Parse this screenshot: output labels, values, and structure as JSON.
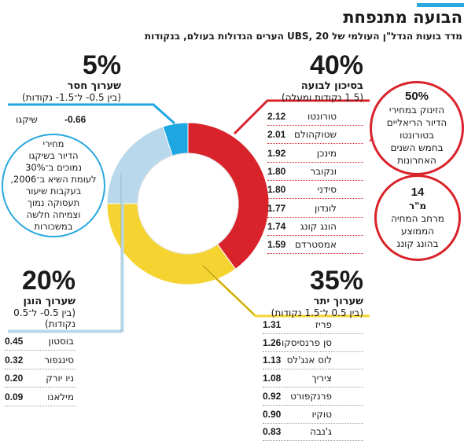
{
  "header": {
    "title": "הבועה מתנפחת",
    "subtitle": "מדד בועות הנדל\"ן העולמי של UBS, 20 הערים הגדולות בעולם, בנקודות"
  },
  "categories": {
    "risk": {
      "pct": "40%",
      "name": "בסיכון לבועה",
      "range": "(1.5 נקודות ומעלה)",
      "color": "#d9232a"
    },
    "over": {
      "pct": "35%",
      "name": "שערוך יתר",
      "range": "(בין 0.5 ל־1.5 נקודות)",
      "color": "#f5d431"
    },
    "fair": {
      "pct": "20%",
      "name": "שערוך הוגן",
      "range1": "(בין 0.5- ל־0.5",
      "range2": "נקודות)",
      "color": "#b9d8ec"
    },
    "under": {
      "pct": "5%",
      "name": "שערוך חסר",
      "range": "(בין 0.5- ל־1.5- נקודות)",
      "color": "#1fa7e1"
    }
  },
  "cities": {
    "risk": [
      {
        "name": "טורונטו",
        "value": "2.12"
      },
      {
        "name": "שטוקהולם",
        "value": "2.01"
      },
      {
        "name": "מינכן",
        "value": "1.92"
      },
      {
        "name": "ונקובר",
        "value": "1.80"
      },
      {
        "name": "סידני",
        "value": "1.80"
      },
      {
        "name": "לונדון",
        "value": "1.77"
      },
      {
        "name": "הונג קונג",
        "value": "1.74"
      },
      {
        "name": "אמסטרדם",
        "value": "1.59"
      }
    ],
    "over": [
      {
        "name": "פריז",
        "value": "1.31"
      },
      {
        "name": "סן פרנסיסקו",
        "value": "1.26"
      },
      {
        "name": "לוס אנג'לס",
        "value": "1.13"
      },
      {
        "name": "ציריך",
        "value": "1.08"
      },
      {
        "name": "פרנקפורט",
        "value": "0.92"
      },
      {
        "name": "טוקיו",
        "value": "0.90"
      },
      {
        "name": "ג'נבה",
        "value": "0.83"
      }
    ],
    "fair": [
      {
        "name": "בוסטון",
        "value": "0.45"
      },
      {
        "name": "סינגפור",
        "value": "0.32"
      },
      {
        "name": "ניו יורק",
        "value": "0.20"
      },
      {
        "name": "מילאנו",
        "value": "0.09"
      }
    ],
    "under": [
      {
        "name": "שיקגו",
        "value": "-0.66"
      }
    ]
  },
  "bubbles": {
    "toronto": {
      "big": "50%",
      "lines": [
        "הזינוק במחירי",
        "הדיור הריאליים",
        "בטורונטו",
        "בחמש השנים",
        "האחרונות"
      ]
    },
    "hongkong": {
      "big": "14",
      "unit": "מ\"ר",
      "lines": [
        "מרחב המחיה",
        "הממוצע",
        "בהונג קונג"
      ]
    },
    "chicago": {
      "lines": [
        "מחירי",
        "הדיור בשיקגו",
        "נמוכים ב־30%",
        "לעומת השיא ב־2006,",
        "בעקבות שיעור",
        "תעסוקה נמוך",
        "וצמיחה חלשה",
        "במשכורות"
      ]
    }
  },
  "chart_data": {
    "type": "pie",
    "categories": [
      "בסיכון לבועה",
      "שערוך יתר",
      "שערוך הוגן",
      "שערוך חסר"
    ],
    "values": [
      40,
      35,
      20,
      5
    ],
    "colors": [
      "#d9232a",
      "#f5d431",
      "#b9d8ec",
      "#1fa7e1"
    ],
    "title": "הבועה מתנפחת"
  }
}
